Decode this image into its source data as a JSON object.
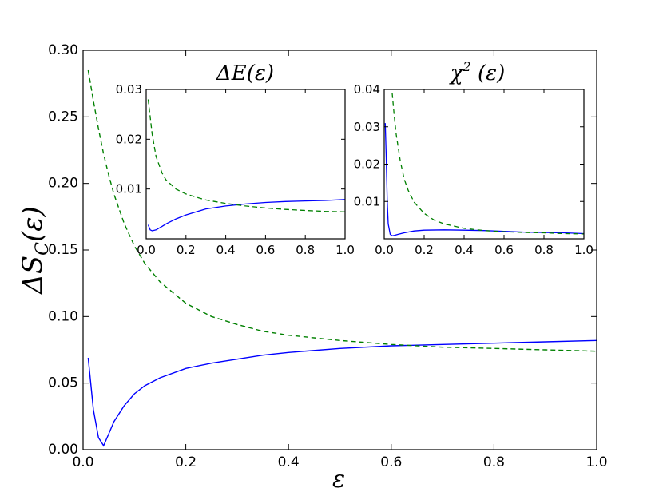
{
  "chart_data": [
    {
      "type": "line",
      "title": "",
      "xlabel": "ε",
      "ylabel": "ΔS_C(ε)",
      "xlim": [
        0,
        1
      ],
      "ylim": [
        0,
        0.3
      ],
      "x_ticks": [
        "0.0",
        "0.2",
        "0.4",
        "0.6",
        "0.8",
        "1.0"
      ],
      "y_ticks": [
        "0.00",
        "0.05",
        "0.10",
        "0.15",
        "0.20",
        "0.25",
        "0.30"
      ],
      "grid": false,
      "series": [
        {
          "color": "#0000ff",
          "style": "solid",
          "x": [
            0.01,
            0.02,
            0.03,
            0.04,
            0.05,
            0.06,
            0.08,
            0.1,
            0.12,
            0.15,
            0.2,
            0.25,
            0.3,
            0.35,
            0.4,
            0.5,
            0.6,
            0.7,
            0.8,
            0.9,
            1.0
          ],
          "y": [
            0.069,
            0.03,
            0.009,
            0.003,
            0.012,
            0.021,
            0.033,
            0.042,
            0.048,
            0.054,
            0.061,
            0.065,
            0.068,
            0.071,
            0.073,
            0.076,
            0.078,
            0.079,
            0.08,
            0.081,
            0.082
          ]
        },
        {
          "color": "#008000",
          "style": "dashed",
          "x": [
            0.01,
            0.02,
            0.03,
            0.04,
            0.05,
            0.06,
            0.08,
            0.1,
            0.12,
            0.15,
            0.2,
            0.25,
            0.3,
            0.35,
            0.4,
            0.5,
            0.6,
            0.7,
            0.8,
            0.9,
            1.0
          ],
          "y": [
            0.285,
            0.262,
            0.241,
            0.222,
            0.206,
            0.192,
            0.17,
            0.153,
            0.14,
            0.126,
            0.11,
            0.1,
            0.094,
            0.089,
            0.086,
            0.082,
            0.079,
            0.077,
            0.076,
            0.075,
            0.074
          ]
        }
      ]
    },
    {
      "type": "line",
      "title": "ΔE(ε)",
      "xlim": [
        0,
        1
      ],
      "ylim": [
        0,
        0.03
      ],
      "x_ticks": [
        "0.0",
        "0.2",
        "0.4",
        "0.6",
        "0.8",
        "1.0"
      ],
      "y_ticks": [
        "0.01",
        "0.02",
        "0.03"
      ],
      "grid": false,
      "series": [
        {
          "color": "#0000ff",
          "style": "solid",
          "x": [
            0.01,
            0.02,
            0.03,
            0.05,
            0.08,
            0.1,
            0.15,
            0.2,
            0.3,
            0.4,
            0.5,
            0.6,
            0.7,
            0.8,
            0.9,
            1.0
          ],
          "y": [
            0.0028,
            0.0018,
            0.0016,
            0.0018,
            0.0025,
            0.003,
            0.004,
            0.0048,
            0.006,
            0.0066,
            0.007,
            0.0073,
            0.0075,
            0.0076,
            0.0077,
            0.0079
          ]
        },
        {
          "color": "#008000",
          "style": "dashed",
          "x": [
            0.01,
            0.02,
            0.03,
            0.05,
            0.08,
            0.1,
            0.15,
            0.2,
            0.3,
            0.4,
            0.5,
            0.6,
            0.7,
            0.8,
            0.9,
            1.0
          ],
          "y": [
            0.028,
            0.0245,
            0.021,
            0.0165,
            0.0132,
            0.0118,
            0.01,
            0.009,
            0.0078,
            0.0071,
            0.0066,
            0.0062,
            0.0059,
            0.0057,
            0.0055,
            0.0054
          ]
        }
      ]
    },
    {
      "type": "line",
      "title": "χ² (ε)",
      "xlim": [
        0,
        1
      ],
      "ylim": [
        0,
        0.04
      ],
      "x_ticks": [
        "0.0",
        "0.2",
        "0.4",
        "0.6",
        "0.8",
        "1.0"
      ],
      "y_ticks": [
        "0.01",
        "0.02",
        "0.03",
        "0.04"
      ],
      "grid": false,
      "series": [
        {
          "color": "#0000ff",
          "style": "solid",
          "x": [
            0.005,
            0.01,
            0.015,
            0.02,
            0.03,
            0.04,
            0.05,
            0.07,
            0.1,
            0.15,
            0.2,
            0.3,
            0.4,
            0.5,
            0.6,
            0.7,
            0.8,
            0.9,
            1.0
          ],
          "y": [
            0.031,
            0.022,
            0.01,
            0.004,
            0.0012,
            0.0008,
            0.0009,
            0.0012,
            0.0016,
            0.0021,
            0.0023,
            0.0024,
            0.0023,
            0.0022,
            0.002,
            0.0018,
            0.0017,
            0.0016,
            0.0014
          ]
        },
        {
          "color": "#008000",
          "style": "dashed",
          "x": [
            0.04,
            0.05,
            0.06,
            0.08,
            0.1,
            0.12,
            0.15,
            0.2,
            0.25,
            0.3,
            0.4,
            0.5,
            0.6,
            0.7,
            0.8,
            0.9,
            1.0
          ],
          "y": [
            0.039,
            0.033,
            0.028,
            0.021,
            0.016,
            0.013,
            0.0098,
            0.0068,
            0.005,
            0.004,
            0.0028,
            0.0022,
            0.0019,
            0.0017,
            0.0016,
            0.0014,
            0.0013
          ]
        }
      ]
    }
  ]
}
